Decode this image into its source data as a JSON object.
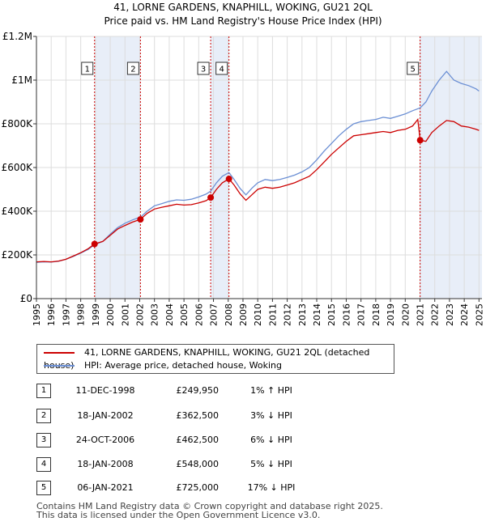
{
  "chart_data": {
    "type": "line",
    "title": "41, LORNE GARDENS, KNAPHILL, WOKING, GU21 2QL",
    "subtitle": "Price paid vs. HM Land Registry's House Price Index (HPI)",
    "xlabel": "",
    "ylabel": "",
    "xlim": [
      1995,
      2025.2
    ],
    "ylim": [
      0,
      1200000
    ],
    "y_ticks": [
      0,
      200000,
      400000,
      600000,
      800000,
      1000000,
      1200000
    ],
    "y_tick_labels": [
      "£0",
      "£200K",
      "£400K",
      "£600K",
      "£800K",
      "£1M",
      "£1.2M"
    ],
    "x_ticks": [
      "1995",
      "1996",
      "1997",
      "1998",
      "1999",
      "2000",
      "2001",
      "2002",
      "2003",
      "2004",
      "2005",
      "2006",
      "2007",
      "2008",
      "2009",
      "2010",
      "2011",
      "2012",
      "2013",
      "2014",
      "2015",
      "2016",
      "2017",
      "2018",
      "2019",
      "2020",
      "2021",
      "2022",
      "2023",
      "2024",
      "2025"
    ],
    "grid": true,
    "series": [
      {
        "name": "41, LORNE GARDENS, KNAPHILL, WOKING, GU21 2QL (detached house)",
        "color": "#cc0000",
        "points": [
          [
            1995.0,
            168000
          ],
          [
            1995.5,
            170000
          ],
          [
            1996.0,
            168000
          ],
          [
            1996.5,
            172000
          ],
          [
            1997.0,
            180000
          ],
          [
            1997.5,
            195000
          ],
          [
            1998.0,
            210000
          ],
          [
            1998.5,
            228000
          ],
          [
            1998.94,
            249950
          ],
          [
            1999.5,
            262000
          ],
          [
            2000.0,
            290000
          ],
          [
            2000.5,
            318000
          ],
          [
            2001.0,
            335000
          ],
          [
            2001.5,
            350000
          ],
          [
            2002.05,
            362500
          ],
          [
            2002.5,
            390000
          ],
          [
            2003.0,
            410000
          ],
          [
            2003.5,
            418000
          ],
          [
            2004.0,
            425000
          ],
          [
            2004.5,
            432000
          ],
          [
            2005.0,
            428000
          ],
          [
            2005.5,
            430000
          ],
          [
            2006.0,
            438000
          ],
          [
            2006.5,
            448000
          ],
          [
            2006.81,
            462500
          ],
          [
            2007.2,
            500000
          ],
          [
            2007.6,
            530000
          ],
          [
            2008.05,
            548000
          ],
          [
            2008.4,
            520000
          ],
          [
            2008.8,
            480000
          ],
          [
            2009.2,
            450000
          ],
          [
            2009.6,
            475000
          ],
          [
            2010.0,
            500000
          ],
          [
            2010.5,
            510000
          ],
          [
            2011.0,
            505000
          ],
          [
            2011.5,
            510000
          ],
          [
            2012.0,
            520000
          ],
          [
            2012.5,
            530000
          ],
          [
            2013.0,
            545000
          ],
          [
            2013.5,
            560000
          ],
          [
            2014.0,
            590000
          ],
          [
            2014.5,
            625000
          ],
          [
            2015.0,
            660000
          ],
          [
            2015.5,
            690000
          ],
          [
            2016.0,
            720000
          ],
          [
            2016.5,
            745000
          ],
          [
            2017.0,
            750000
          ],
          [
            2017.5,
            755000
          ],
          [
            2018.0,
            760000
          ],
          [
            2018.5,
            765000
          ],
          [
            2019.0,
            760000
          ],
          [
            2019.5,
            770000
          ],
          [
            2020.0,
            775000
          ],
          [
            2020.5,
            790000
          ],
          [
            2020.85,
            820000
          ],
          [
            2021.01,
            725000
          ],
          [
            2021.4,
            720000
          ],
          [
            2021.8,
            760000
          ],
          [
            2022.3,
            790000
          ],
          [
            2022.8,
            815000
          ],
          [
            2023.3,
            810000
          ],
          [
            2023.8,
            790000
          ],
          [
            2024.3,
            785000
          ],
          [
            2024.8,
            775000
          ],
          [
            2025.0,
            770000
          ]
        ]
      },
      {
        "name": "HPI: Average price, detached house, Woking",
        "color": "#6b8fd4",
        "points": [
          [
            1995.0,
            166000
          ],
          [
            1995.5,
            168000
          ],
          [
            1996.0,
            167000
          ],
          [
            1996.5,
            171000
          ],
          [
            1997.0,
            180000
          ],
          [
            1997.5,
            193000
          ],
          [
            1998.0,
            208000
          ],
          [
            1998.5,
            225000
          ],
          [
            1998.94,
            247000
          ],
          [
            1999.5,
            262000
          ],
          [
            2000.0,
            295000
          ],
          [
            2000.5,
            325000
          ],
          [
            2001.0,
            345000
          ],
          [
            2001.5,
            360000
          ],
          [
            2002.05,
            373000
          ],
          [
            2002.5,
            400000
          ],
          [
            2003.0,
            425000
          ],
          [
            2003.5,
            435000
          ],
          [
            2004.0,
            445000
          ],
          [
            2004.5,
            452000
          ],
          [
            2005.0,
            450000
          ],
          [
            2005.5,
            455000
          ],
          [
            2006.0,
            465000
          ],
          [
            2006.5,
            478000
          ],
          [
            2006.81,
            492000
          ],
          [
            2007.2,
            530000
          ],
          [
            2007.6,
            560000
          ],
          [
            2008.05,
            577000
          ],
          [
            2008.4,
            545000
          ],
          [
            2008.8,
            505000
          ],
          [
            2009.2,
            475000
          ],
          [
            2009.6,
            505000
          ],
          [
            2010.0,
            530000
          ],
          [
            2010.5,
            545000
          ],
          [
            2011.0,
            540000
          ],
          [
            2011.5,
            545000
          ],
          [
            2012.0,
            555000
          ],
          [
            2012.5,
            565000
          ],
          [
            2013.0,
            580000
          ],
          [
            2013.5,
            600000
          ],
          [
            2014.0,
            635000
          ],
          [
            2014.5,
            675000
          ],
          [
            2015.0,
            710000
          ],
          [
            2015.5,
            745000
          ],
          [
            2016.0,
            775000
          ],
          [
            2016.5,
            800000
          ],
          [
            2017.0,
            810000
          ],
          [
            2017.5,
            815000
          ],
          [
            2018.0,
            820000
          ],
          [
            2018.5,
            830000
          ],
          [
            2019.0,
            825000
          ],
          [
            2019.5,
            835000
          ],
          [
            2020.0,
            845000
          ],
          [
            2020.5,
            860000
          ],
          [
            2021.01,
            873000
          ],
          [
            2021.4,
            900000
          ],
          [
            2021.8,
            950000
          ],
          [
            2022.3,
            1000000
          ],
          [
            2022.8,
            1040000
          ],
          [
            2023.3,
            1000000
          ],
          [
            2023.8,
            985000
          ],
          [
            2024.3,
            975000
          ],
          [
            2024.8,
            960000
          ],
          [
            2025.0,
            950000
          ]
        ]
      }
    ],
    "sales": [
      {
        "n": "1",
        "x": 1998.94,
        "price": 249950
      },
      {
        "n": "2",
        "x": 2002.05,
        "price": 362500
      },
      {
        "n": "3",
        "x": 2006.81,
        "price": 462500
      },
      {
        "n": "4",
        "x": 2008.05,
        "price": 548000
      },
      {
        "n": "5",
        "x": 2021.01,
        "price": 725000
      }
    ],
    "shaded_periods": [
      [
        1998.94,
        2002.05
      ],
      [
        2006.81,
        2008.05
      ],
      [
        2021.01,
        2025.2
      ]
    ]
  },
  "legend": {
    "property": "41, LORNE GARDENS, KNAPHILL, WOKING, GU21 2QL (detached house)",
    "hpi": "HPI: Average price, detached house, Woking",
    "property_color": "#cc0000",
    "hpi_color": "#6b8fd4"
  },
  "sales_table": [
    {
      "n": "1",
      "date": "11-DEC-1998",
      "price": "£249,950",
      "hpi": "1% ↑ HPI"
    },
    {
      "n": "2",
      "date": "18-JAN-2002",
      "price": "£362,500",
      "hpi": "3% ↓ HPI"
    },
    {
      "n": "3",
      "date": "24-OCT-2006",
      "price": "£462,500",
      "hpi": "6% ↓ HPI"
    },
    {
      "n": "4",
      "date": "18-JAN-2008",
      "price": "£548,000",
      "hpi": "5% ↓ HPI"
    },
    {
      "n": "5",
      "date": "06-JAN-2021",
      "price": "£725,000",
      "hpi": "17% ↓ HPI"
    }
  ],
  "footer": {
    "line1": "Contains HM Land Registry data © Crown copyright and database right 2025.",
    "line2": "This data is licensed under the Open Government Licence v3.0."
  }
}
